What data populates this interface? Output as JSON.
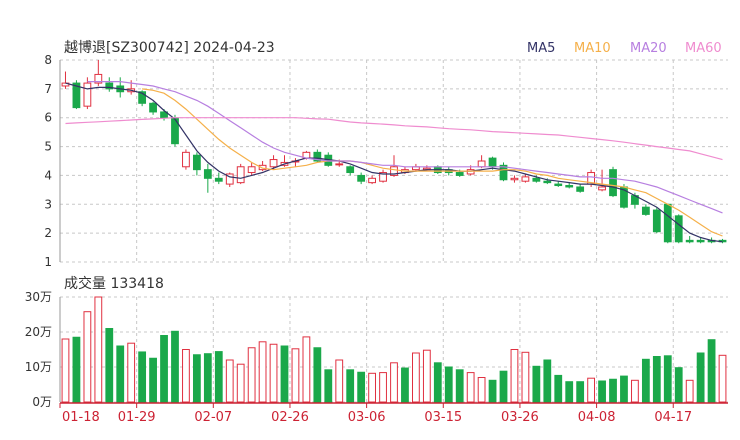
{
  "header": {
    "title": "越博退[SZ300742] 2024-04-23",
    "legend": [
      {
        "label": "MA5",
        "color": "#333366"
      },
      {
        "label": "MA10",
        "color": "#f5b04a"
      },
      {
        "label": "MA20",
        "color": "#b77fe0"
      },
      {
        "label": "MA60",
        "color": "#ef8ccf"
      }
    ]
  },
  "volume_header": {
    "label": "成交量 133418"
  },
  "colors": {
    "up": "#e03040",
    "down": "#1aa84a",
    "grid": "#c8c8c8",
    "axis": "#cc2233"
  },
  "chart_data": [
    {
      "type": "candlestick",
      "title": "越博退[SZ300742] 2024-04-23",
      "ylim": [
        1,
        8
      ],
      "yticks": [
        "1",
        "2",
        "3",
        "4",
        "5",
        "6",
        "7",
        "8"
      ],
      "dates": [
        "01-18",
        "01-19",
        "01-22",
        "01-23",
        "01-24",
        "01-25",
        "01-26",
        "01-29",
        "01-30",
        "01-31",
        "02-01",
        "02-02",
        "02-05",
        "02-06",
        "02-07",
        "02-08",
        "02-19",
        "02-20",
        "02-21",
        "02-22",
        "02-23",
        "02-26",
        "02-27",
        "02-28",
        "02-29",
        "03-01",
        "03-04",
        "03-05",
        "03-06",
        "03-07",
        "03-08",
        "03-11",
        "03-12",
        "03-13",
        "03-14",
        "03-15",
        "03-18",
        "03-19",
        "03-20",
        "03-21",
        "03-22",
        "03-25",
        "03-26",
        "03-27",
        "03-28",
        "03-29",
        "04-01",
        "04-02",
        "04-03",
        "04-08",
        "04-09",
        "04-10",
        "04-11",
        "04-12",
        "04-15",
        "04-16",
        "04-17",
        "04-18",
        "04-19",
        "04-22",
        "04-23"
      ],
      "open": [
        7.1,
        7.2,
        6.4,
        7.2,
        7.2,
        7.1,
        6.9,
        6.9,
        6.5,
        6.2,
        6.0,
        4.3,
        4.7,
        4.2,
        3.9,
        3.7,
        3.75,
        4.1,
        4.2,
        4.3,
        4.35,
        4.5,
        4.6,
        4.8,
        4.7,
        4.4,
        4.3,
        4.0,
        3.75,
        3.8,
        4.0,
        4.1,
        4.2,
        4.2,
        4.3,
        4.2,
        4.1,
        4.05,
        4.3,
        4.6,
        4.35,
        3.85,
        3.8,
        3.9,
        3.8,
        3.7,
        3.65,
        3.6,
        3.7,
        3.5,
        4.2,
        3.6,
        3.3,
        2.9,
        2.8,
        3.0,
        2.6,
        1.75,
        1.75,
        1.75,
        1.75
      ],
      "close": [
        7.2,
        6.35,
        7.2,
        7.5,
        7.0,
        6.9,
        7.0,
        6.5,
        6.2,
        6.0,
        5.1,
        4.8,
        4.2,
        3.9,
        3.8,
        4.05,
        4.3,
        4.3,
        4.35,
        4.55,
        4.45,
        4.5,
        4.8,
        4.5,
        4.35,
        4.4,
        4.1,
        3.8,
        3.9,
        4.1,
        4.3,
        4.2,
        4.3,
        4.25,
        4.1,
        4.1,
        4.0,
        4.2,
        4.5,
        4.3,
        3.85,
        3.9,
        3.95,
        3.8,
        3.75,
        3.65,
        3.6,
        3.45,
        4.1,
        3.6,
        3.3,
        2.9,
        3.0,
        2.65,
        2.05,
        1.7,
        1.7,
        1.7,
        1.7,
        1.7,
        1.7
      ],
      "high": [
        7.6,
        7.3,
        7.4,
        8.0,
        7.4,
        7.4,
        7.3,
        6.95,
        6.55,
        6.3,
        6.1,
        4.9,
        4.8,
        4.4,
        4.1,
        4.1,
        4.4,
        4.45,
        4.5,
        4.7,
        4.7,
        4.6,
        4.85,
        4.9,
        4.8,
        4.55,
        4.35,
        4.1,
        4.0,
        4.2,
        4.7,
        4.3,
        4.4,
        4.35,
        4.35,
        4.3,
        4.2,
        4.35,
        4.7,
        4.65,
        4.45,
        4.0,
        4.05,
        4.0,
        3.9,
        3.8,
        3.75,
        3.7,
        4.2,
        4.2,
        4.3,
        3.7,
        3.4,
        3.0,
        2.9,
        3.0,
        2.65,
        1.9,
        1.85,
        1.85,
        1.8
      ],
      "low": [
        7.0,
        6.3,
        6.3,
        7.1,
        6.9,
        6.7,
        6.8,
        6.4,
        6.1,
        5.9,
        5.0,
        4.2,
        4.0,
        3.4,
        3.7,
        3.6,
        3.7,
        4.0,
        4.15,
        4.2,
        4.3,
        4.3,
        4.55,
        4.45,
        4.3,
        4.3,
        4.0,
        3.7,
        3.7,
        3.75,
        3.95,
        4.05,
        4.15,
        4.15,
        4.05,
        4.0,
        3.95,
        4.0,
        4.25,
        4.2,
        3.8,
        3.75,
        3.75,
        3.75,
        3.7,
        3.6,
        3.55,
        3.4,
        3.6,
        3.45,
        3.25,
        2.85,
        2.85,
        2.6,
        2.0,
        1.65,
        1.65,
        1.65,
        1.65,
        1.65,
        1.65
      ],
      "ma_series": [
        {
          "name": "MA5",
          "values": [
            7.2,
            7.1,
            7.0,
            7.05,
            7.05,
            7.0,
            6.95,
            6.85,
            6.6,
            6.25,
            5.95,
            5.4,
            4.85,
            4.45,
            4.15,
            3.95,
            3.9,
            4.0,
            4.1,
            4.25,
            4.4,
            4.5,
            4.6,
            4.6,
            4.55,
            4.5,
            4.4,
            4.25,
            4.1,
            4.05,
            4.05,
            4.1,
            4.15,
            4.2,
            4.2,
            4.2,
            4.15,
            4.15,
            4.2,
            4.25,
            4.2,
            4.15,
            4.05,
            3.95,
            3.85,
            3.8,
            3.75,
            3.7,
            3.7,
            3.65,
            3.6,
            3.5,
            3.3,
            3.1,
            2.9,
            2.6,
            2.3,
            2.0,
            1.85,
            1.75,
            1.7
          ]
        },
        {
          "name": "MA10",
          "values": [
            null,
            null,
            null,
            null,
            null,
            null,
            null,
            7.0,
            6.95,
            6.85,
            6.6,
            6.3,
            5.95,
            5.6,
            5.25,
            4.95,
            4.7,
            4.45,
            4.25,
            4.2,
            4.25,
            4.3,
            4.35,
            4.45,
            4.5,
            4.5,
            4.5,
            4.45,
            4.35,
            4.25,
            4.2,
            4.15,
            4.15,
            4.15,
            4.15,
            4.15,
            4.15,
            4.15,
            4.15,
            4.15,
            4.2,
            4.2,
            4.15,
            4.05,
            4.0,
            3.9,
            3.85,
            3.8,
            3.75,
            3.7,
            3.65,
            3.6,
            3.5,
            3.4,
            3.2,
            3.0,
            2.8,
            2.55,
            2.3,
            2.05,
            1.9
          ]
        },
        {
          "name": "MA20",
          "values": [
            null,
            null,
            7.25,
            7.25,
            7.25,
            7.25,
            7.2,
            7.15,
            7.1,
            7.0,
            6.9,
            6.75,
            6.6,
            6.4,
            6.15,
            5.9,
            5.65,
            5.4,
            5.15,
            4.95,
            4.8,
            4.7,
            4.6,
            4.55,
            4.5,
            4.5,
            4.5,
            4.45,
            4.4,
            4.35,
            4.35,
            4.3,
            4.3,
            4.3,
            4.3,
            4.3,
            4.3,
            4.3,
            4.3,
            4.3,
            4.3,
            4.25,
            4.2,
            4.15,
            4.1,
            4.05,
            4.0,
            3.95,
            3.95,
            3.9,
            3.9,
            3.85,
            3.8,
            3.7,
            3.6,
            3.45,
            3.3,
            3.15,
            3.0,
            2.85,
            2.7
          ]
        },
        {
          "name": "MA60",
          "values": [
            5.8,
            5.82,
            5.84,
            5.86,
            5.88,
            5.9,
            5.92,
            5.94,
            5.96,
            5.98,
            6.0,
            6.0,
            6.0,
            6.0,
            6.0,
            6.0,
            6.0,
            6.0,
            6.0,
            6.0,
            6.0,
            6.0,
            5.98,
            5.96,
            5.95,
            5.9,
            5.85,
            5.82,
            5.8,
            5.78,
            5.75,
            5.72,
            5.7,
            5.68,
            5.65,
            5.62,
            5.6,
            5.58,
            5.55,
            5.52,
            5.5,
            5.48,
            5.46,
            5.44,
            5.42,
            5.4,
            5.36,
            5.32,
            5.28,
            5.24,
            5.2,
            5.15,
            5.1,
            5.05,
            5.0,
            4.95,
            4.9,
            4.85,
            4.75,
            4.65,
            4.55
          ]
        }
      ],
      "xtick_labels": [
        "01-18",
        "01-29",
        "02-07",
        "02-26",
        "03-06",
        "03-15",
        "03-26",
        "04-08",
        "04-17"
      ]
    },
    {
      "type": "bar",
      "title": "成交量 133418",
      "ylim": [
        0,
        300000
      ],
      "yticks": [
        "0万",
        "10万",
        "20万",
        "30万"
      ],
      "values": [
        180000,
        185000,
        258000,
        300000,
        210000,
        160000,
        168000,
        143000,
        125000,
        190000,
        202000,
        150000,
        135000,
        138000,
        144000,
        120000,
        108000,
        155000,
        172000,
        165000,
        160000,
        152000,
        186000,
        155000,
        92000,
        120000,
        92000,
        85000,
        82000,
        84000,
        112000,
        97000,
        140000,
        148000,
        112000,
        100000,
        92000,
        84000,
        70000,
        62000,
        88000,
        150000,
        142000,
        102000,
        120000,
        76000,
        58000,
        58000,
        68000,
        60000,
        65000,
        74000,
        62000,
        122000,
        130000,
        132000,
        98000,
        62000,
        140000,
        178000,
        133418
      ],
      "up": [
        true,
        false,
        true,
        true,
        false,
        false,
        true,
        false,
        false,
        false,
        false,
        true,
        false,
        false,
        false,
        true,
        true,
        true,
        true,
        true,
        false,
        true,
        true,
        false,
        false,
        true,
        false,
        false,
        true,
        true,
        true,
        false,
        true,
        true,
        false,
        false,
        false,
        true,
        true,
        false,
        false,
        true,
        true,
        false,
        false,
        false,
        false,
        false,
        true,
        false,
        false,
        false,
        true,
        false,
        false,
        false,
        false,
        true,
        false,
        false,
        true
      ],
      "xtick_labels": [
        "01-18",
        "01-29",
        "02-07",
        "02-26",
        "03-06",
        "03-15",
        "03-26",
        "04-08",
        "04-17"
      ]
    }
  ]
}
